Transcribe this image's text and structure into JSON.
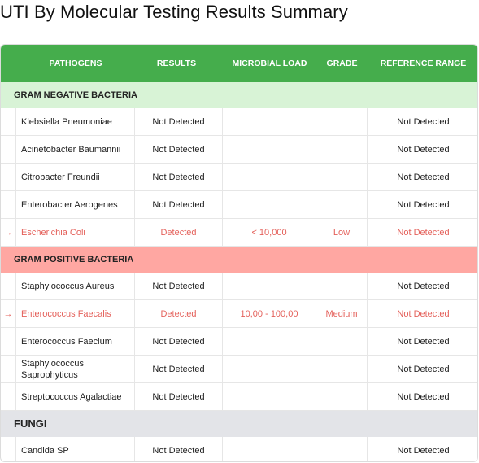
{
  "title": "UTI By Molecular Testing Results Summary",
  "header": {
    "pathogens": "PATHOGENS",
    "results": "RESULTS",
    "microbial_load": "MICROBIAL LOAD",
    "grade": "GRADE",
    "reference_range": "REFERENCE RANGE"
  },
  "sections": {
    "gram_negative": "GRAM NEGATIVE BACTERIA",
    "gram_positive": "GRAM POSITIVE BACTERIA",
    "fungi": "FUNGI"
  },
  "gram_negative_rows": [
    {
      "name": "Klebsiella Pneumoniae",
      "result": "Not Detected",
      "load": "",
      "grade": "",
      "reference": "Not Detected"
    },
    {
      "name": "Acinetobacter Baumannii",
      "result": "Not Detected",
      "load": "",
      "grade": "",
      "reference": "Not Detected"
    },
    {
      "name": "Citrobacter Freundii",
      "result": "Not Detected",
      "load": "",
      "grade": "",
      "reference": "Not Detected"
    },
    {
      "name": "Enterobacter Aerogenes",
      "result": "Not Detected",
      "load": "",
      "grade": "",
      "reference": "Not Detected"
    },
    {
      "name": "Escherichia Coli",
      "result": "Detected",
      "load": "< 10,000",
      "grade": "Low",
      "reference": "Not Detected"
    }
  ],
  "gram_positive_rows": [
    {
      "name": "Staphylococcus Aureus",
      "result": "Not Detected",
      "load": "",
      "grade": "",
      "reference": "Not Detected"
    },
    {
      "name": "Enterococcus Faecalis",
      "result": "Detected",
      "load": "10,00 - 100,00",
      "grade": "Medium",
      "reference": "Not Detected"
    },
    {
      "name": "Enterococcus Faecium",
      "result": "Not Detected",
      "load": "",
      "grade": "",
      "reference": "Not Detected"
    },
    {
      "name": "Staphylococcus Saprophyticus",
      "result": "Not Detected",
      "load": "",
      "grade": "",
      "reference": "Not Detected"
    },
    {
      "name": "Streptococcus Agalactiae",
      "result": "Not Detected",
      "load": "",
      "grade": "",
      "reference": "Not Detected"
    }
  ],
  "fungi_rows": [
    {
      "name": "Candida SP",
      "result": "Not Detected",
      "load": "",
      "grade": "",
      "reference": "Not Detected"
    }
  ],
  "detected_arrow": "→",
  "colors": {
    "header_green": "#45ad4c",
    "negative_section": "#d8f3d6",
    "positive_section": "#ffa7a2",
    "fungi_section": "#e3e4e8",
    "detected_red": "#e4605a"
  }
}
